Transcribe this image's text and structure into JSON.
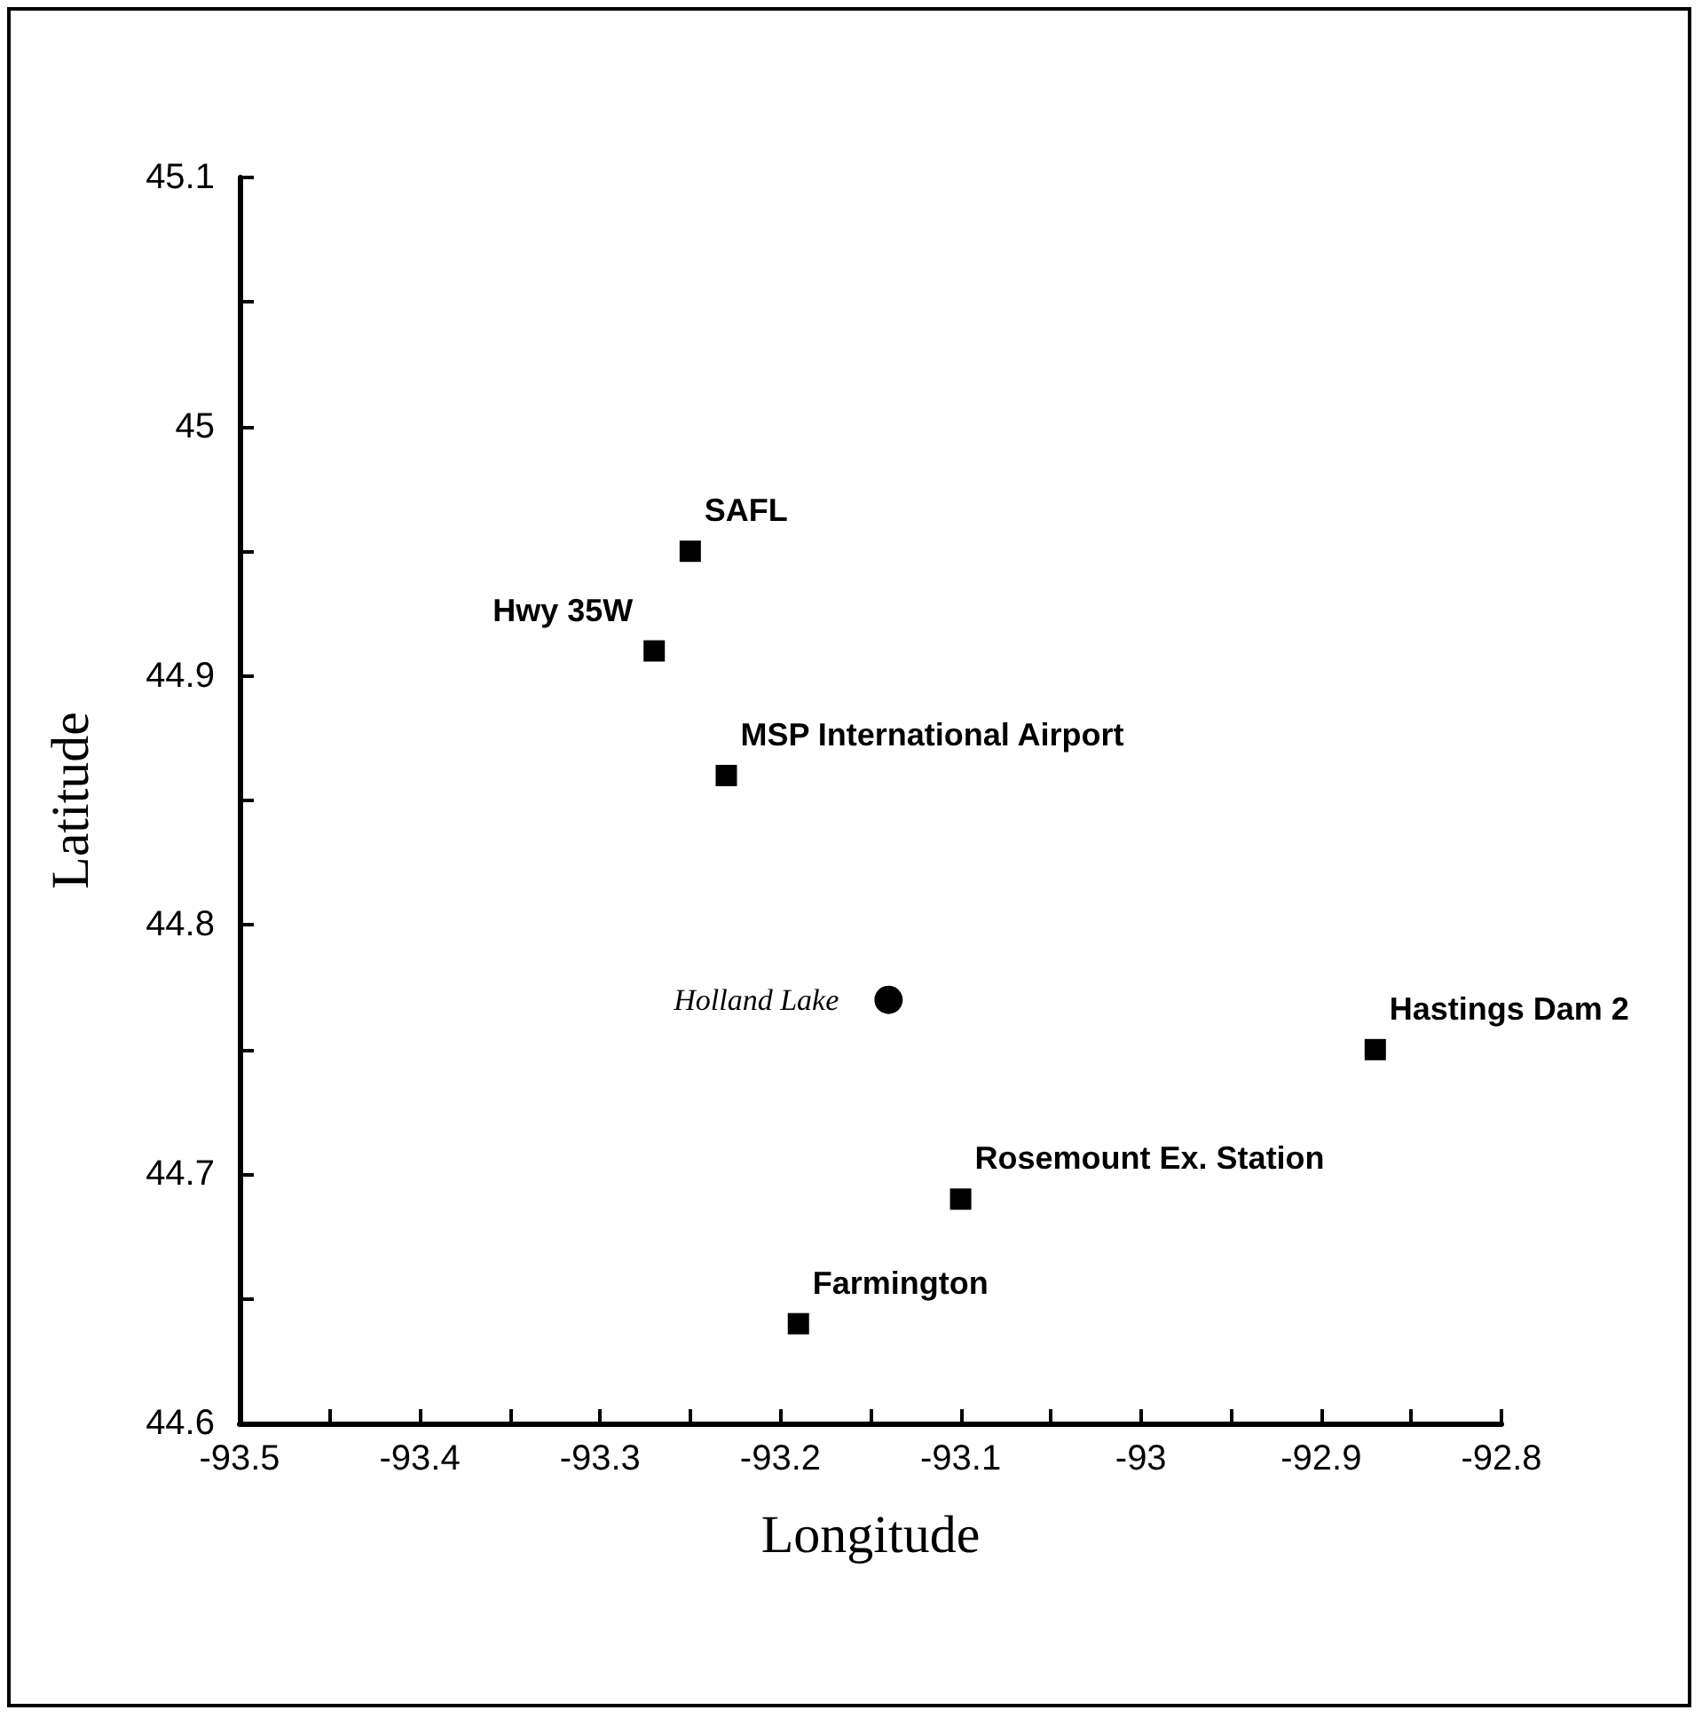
{
  "chart_data": {
    "type": "scatter",
    "xlabel": "Longitude",
    "ylabel": "Latitude",
    "xlim": [
      -93.5,
      -92.8
    ],
    "ylim": [
      44.6,
      45.1
    ],
    "xticks": [
      -93.5,
      {
        "value": -93.45,
        "label": null
      },
      -93.4,
      {
        "value": -93.35,
        "label": null
      },
      -93.3,
      {
        "value": -93.25,
        "label": null
      },
      -93.2,
      {
        "value": -93.15,
        "label": null
      },
      -93.1,
      {
        "value": -93.05,
        "label": null
      },
      -93,
      {
        "value": -92.95,
        "label": null
      },
      -92.9,
      {
        "value": -92.85,
        "label": null
      },
      -92.8
    ],
    "yticks": [
      44.6,
      {
        "value": 44.65,
        "label": null
      },
      44.7,
      {
        "value": 44.75,
        "label": null
      },
      44.8,
      {
        "value": 44.85,
        "label": null
      },
      44.9,
      {
        "value": 44.95,
        "label": null
      },
      45,
      {
        "value": 45.05,
        "label": null
      },
      45.1
    ],
    "series": [
      {
        "color": "#000000",
        "marker": "square",
        "x": [
          -93.25,
          -93.27,
          -93.23,
          -92.87,
          -93.1,
          -93.19
        ],
        "values": [
          44.95,
          44.91,
          44.86,
          44.75,
          44.69,
          44.64
        ]
      },
      {
        "color": "#000000",
        "marker": "circle",
        "x": [
          -93.14
        ],
        "values": [
          44.77
        ]
      }
    ],
    "annotations": [
      {
        "text": "SAFL",
        "x": -93.25,
        "y": 44.95
      },
      {
        "text": "Hwy 35W",
        "x": -93.27,
        "y": 44.91
      },
      {
        "text": "MSP International Airport",
        "x": -93.23,
        "y": 44.86
      },
      {
        "text": "Holland Lake",
        "x": -93.14,
        "y": 44.77
      },
      {
        "text": "Hastings Dam 2",
        "x": -92.87,
        "y": 44.75
      },
      {
        "text": "Rosemount Ex. Station",
        "x": -93.1,
        "y": 44.69
      },
      {
        "text": "Farmington",
        "x": -93.19,
        "y": 44.64
      }
    ]
  }
}
